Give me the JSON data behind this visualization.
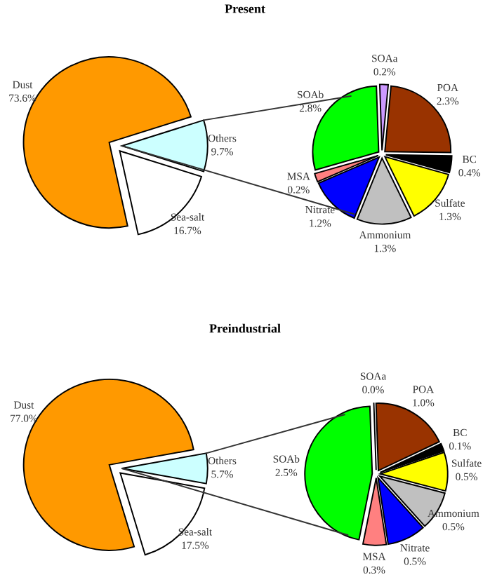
{
  "chart_data": [
    {
      "type": "pie",
      "title": "Present",
      "categories": [
        "Others",
        "Dust",
        "Sea-salt"
      ],
      "values": [
        9.7,
        73.6,
        16.7
      ],
      "colors": [
        "#ccffff",
        "#ff9900",
        "#ffffff"
      ],
      "value_labels": [
        "9.7%",
        "73.6%",
        "16.7%"
      ]
    },
    {
      "type": "pie",
      "categories": [
        "SOAa",
        "POA",
        "BC",
        "Sulfate",
        "Ammonium",
        "Nitrate",
        "MSA",
        "SOAb"
      ],
      "values": [
        0.2,
        2.3,
        0.4,
        1.3,
        1.3,
        1.2,
        0.2,
        2.8
      ],
      "colors": [
        "#cc99ff",
        "#993300",
        "#000000",
        "#ffff00",
        "#c0c0c0",
        "#0000ff",
        "#ff8080",
        "#00ff00"
      ],
      "value_labels": [
        "0.2%",
        "2.3%",
        "0.4%",
        "1.3%",
        "1.3%",
        "1.2%",
        "0.2%",
        "2.8%"
      ]
    },
    {
      "type": "pie",
      "title": "Preindustrial",
      "categories": [
        "Others",
        "Dust",
        "Sea-salt"
      ],
      "values": [
        5.7,
        77.0,
        17.5
      ],
      "colors": [
        "#ccffff",
        "#ff9900",
        "#ffffff"
      ],
      "value_labels": [
        "5.7%",
        "77.0%",
        "17.5%"
      ]
    },
    {
      "type": "pie",
      "categories": [
        "SOAa",
        "POA",
        "BC",
        "Sulfate",
        "Ammonium",
        "Nitrate",
        "MSA",
        "SOAb"
      ],
      "values": [
        0.0,
        1.0,
        0.1,
        0.5,
        0.5,
        0.5,
        0.3,
        2.5
      ],
      "colors": [
        "#cc99ff",
        "#993300",
        "#000000",
        "#ffff00",
        "#c0c0c0",
        "#0000ff",
        "#ff8080",
        "#00ff00"
      ],
      "value_labels": [
        "0.0%",
        "1.0%",
        "0.1%",
        "0.5%",
        "0.5%",
        "0.5%",
        "0.3%",
        "2.5%"
      ]
    }
  ]
}
